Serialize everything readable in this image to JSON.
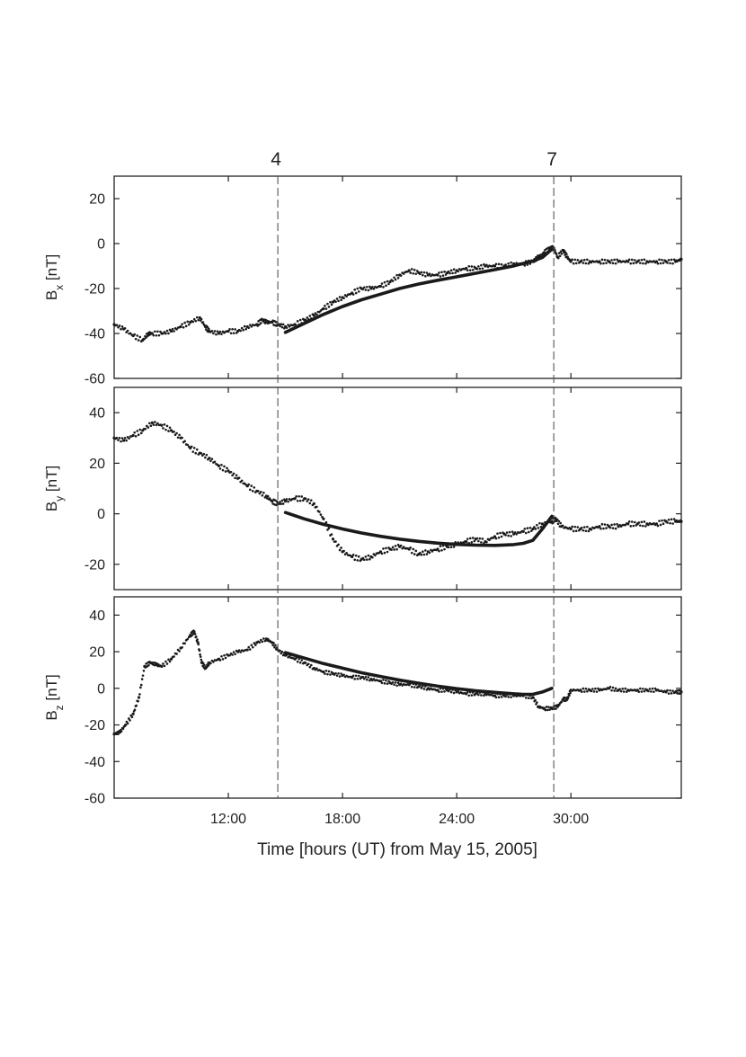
{
  "chart_data": {
    "type": "scatter",
    "xlabel": "Time [hours (UT) from May 15, 2005]",
    "x_ticks": [
      {
        "value": 12,
        "label": "12:00"
      },
      {
        "value": 18,
        "label": "18:00"
      },
      {
        "value": 24,
        "label": "24:00"
      },
      {
        "value": 30,
        "label": "30:00"
      }
    ],
    "xlim": [
      6,
      35.8
    ],
    "markers": [
      {
        "x": 14.6,
        "label": "4"
      },
      {
        "x": 29.1,
        "label": "7"
      }
    ],
    "colors": {
      "data": "#1a1a1a",
      "fit": "#1a1a1a",
      "marker_line": "#555555",
      "axis": "#222222"
    },
    "panels": [
      {
        "name": "Bx",
        "ylabel": "B",
        "ylabel_sub": "x",
        "ylabel_unit": " [nT]",
        "ylim": [
          -60,
          30
        ],
        "y_ticks": [
          20,
          0,
          -20,
          -40,
          -60
        ],
        "series": [
          {
            "kind": "points",
            "x": [
              6.0,
              6.5,
              7.0,
              7.5,
              7.8,
              8.0,
              8.5,
              9.0,
              9.5,
              10.0,
              10.5,
              10.8,
              11.0,
              11.5,
              12.0,
              12.5,
              13.0,
              13.5,
              13.8,
              14.0,
              14.3,
              14.6,
              15.0,
              15.5,
              16.0,
              16.5,
              17.0,
              17.5,
              18.0,
              18.5,
              19.0,
              19.5,
              20.0,
              20.5,
              21.0,
              21.5,
              22.0,
              22.5,
              23.0,
              23.5,
              24.0,
              24.5,
              25.0,
              25.5,
              26.0,
              26.5,
              27.0,
              27.5,
              28.0,
              28.3,
              28.6,
              28.9,
              29.1,
              29.3,
              29.6,
              29.8,
              30.0,
              30.5,
              31.0,
              31.5,
              32.0,
              32.5,
              33.0,
              33.5,
              34.0,
              34.5,
              35.0,
              35.5,
              35.8
            ],
            "y": [
              -36,
              -38,
              -41,
              -43,
              -40,
              -40,
              -40,
              -39,
              -37,
              -35,
              -33,
              -37,
              -39,
              -40,
              -39,
              -39,
              -37,
              -36,
              -34,
              -35,
              -35,
              -36,
              -37,
              -36,
              -34,
              -32,
              -29,
              -26,
              -24,
              -22,
              -20,
              -20,
              -19,
              -17,
              -14,
              -12,
              -13,
              -14,
              -14,
              -13,
              -12,
              -11,
              -11,
              -10,
              -10,
              -10,
              -9,
              -9,
              -8,
              -6,
              -4,
              -2,
              -2,
              -6,
              -3,
              -6,
              -8,
              -8,
              -8,
              -8,
              -8,
              -8,
              -8,
              -8,
              -8,
              -8,
              -8,
              -8,
              -7
            ]
          },
          {
            "kind": "fit",
            "x": [
              15.0,
              16.0,
              17.0,
              18.0,
              19.0,
              20.0,
              21.0,
              22.0,
              23.0,
              24.0,
              25.0,
              26.0,
              27.0,
              28.0,
              28.5,
              29.0
            ],
            "y": [
              -39.5,
              -35.5,
              -31.5,
              -28,
              -25,
              -22.5,
              -20,
              -18,
              -16.3,
              -14.8,
              -13.2,
              -11.6,
              -9.9,
              -7.8,
              -6.2,
              -2.5
            ]
          }
        ]
      },
      {
        "name": "By",
        "ylabel": "B",
        "ylabel_sub": "y",
        "ylabel_unit": " [nT]",
        "ylim": [
          -30,
          50
        ],
        "y_ticks": [
          40,
          20,
          0,
          -20
        ],
        "series": [
          {
            "kind": "points",
            "x": [
              6.0,
              6.5,
              7.0,
              7.5,
              8.0,
              8.5,
              9.0,
              9.5,
              10.0,
              10.5,
              11.0,
              11.5,
              12.0,
              12.5,
              13.0,
              13.5,
              14.0,
              14.3,
              14.6,
              15.0,
              15.5,
              16.0,
              16.5,
              17.0,
              17.5,
              18.0,
              18.5,
              19.0,
              19.5,
              20.0,
              20.5,
              21.0,
              21.5,
              22.0,
              22.5,
              23.0,
              23.5,
              24.0,
              24.5,
              25.0,
              25.5,
              26.0,
              26.5,
              27.0,
              27.5,
              28.0,
              28.5,
              29.0,
              29.2,
              29.5,
              30.0,
              30.5,
              31.0,
              31.5,
              32.0,
              32.5,
              33.0,
              33.5,
              34.0,
              34.5,
              35.0,
              35.5,
              35.8
            ],
            "y": [
              30,
              29,
              31,
              33,
              36,
              35,
              33,
              30,
              26,
              24,
              22,
              19,
              17,
              14,
              11,
              9,
              7,
              5,
              4,
              5,
              6,
              6,
              4,
              -2,
              -10,
              -15,
              -17,
              -18,
              -17,
              -15,
              -14,
              -13,
              -14,
              -16,
              -15,
              -14,
              -13,
              -12,
              -11,
              -10,
              -11,
              -9,
              -8,
              -8,
              -7,
              -6,
              -4,
              -3,
              -2,
              -5,
              -6,
              -6,
              -6,
              -5,
              -5,
              -5,
              -4,
              -4,
              -4,
              -4,
              -3,
              -3,
              -3
            ]
          },
          {
            "kind": "fit",
            "x": [
              15.0,
              16.0,
              17.0,
              18.0,
              19.0,
              20.0,
              21.0,
              22.0,
              23.0,
              24.0,
              25.0,
              26.0,
              27.0,
              27.5,
              28.0,
              28.5,
              29.0
            ],
            "y": [
              0.5,
              -2,
              -4.2,
              -6,
              -7.6,
              -8.9,
              -10,
              -10.9,
              -11.6,
              -12.1,
              -12.4,
              -12.5,
              -12.2,
              -11.7,
              -10.5,
              -6,
              -1
            ]
          }
        ]
      },
      {
        "name": "Bz",
        "ylabel": "B",
        "ylabel_sub": "z",
        "ylabel_unit": " [nT]",
        "ylim": [
          -60,
          50
        ],
        "y_ticks": [
          40,
          20,
          0,
          -20,
          -40,
          -60
        ],
        "series": [
          {
            "kind": "points",
            "x": [
              6.0,
              6.3,
              6.6,
              7.0,
              7.3,
              7.6,
              7.9,
              8.2,
              8.5,
              9.0,
              9.5,
              10.0,
              10.2,
              10.4,
              10.6,
              10.8,
              11.0,
              11.5,
              12.0,
              12.5,
              13.0,
              13.5,
              14.0,
              14.3,
              14.6,
              15.0,
              15.5,
              16.0,
              16.5,
              17.0,
              17.5,
              18.0,
              18.5,
              19.0,
              19.5,
              20.0,
              20.5,
              21.0,
              21.5,
              22.0,
              22.5,
              23.0,
              23.5,
              24.0,
              24.5,
              25.0,
              25.5,
              26.0,
              26.5,
              27.0,
              27.5,
              28.0,
              28.3,
              28.6,
              29.0,
              29.3,
              29.6,
              29.8,
              30.0,
              30.5,
              31.0,
              31.5,
              32.0,
              32.5,
              33.0,
              33.5,
              34.0,
              34.5,
              35.0,
              35.5,
              35.8
            ],
            "y": [
              -25,
              -24,
              -20,
              -14,
              -5,
              12,
              14,
              13,
              12,
              16,
              22,
              29,
              31,
              25,
              14,
              11,
              14,
              16,
              18,
              20,
              21,
              25,
              27,
              25,
              21,
              18,
              16,
              14,
              11,
              9,
              8,
              7,
              6,
              6,
              5,
              4,
              3,
              2,
              2,
              1,
              0,
              -1,
              -1,
              -2,
              -3,
              -3,
              -3,
              -4,
              -4,
              -4,
              -4,
              -5,
              -10,
              -11,
              -11,
              -10,
              -6,
              -6,
              -1,
              -1,
              -1,
              -1,
              0,
              -1,
              -1,
              -1,
              -1,
              -1,
              -2,
              -2,
              -2
            ]
          },
          {
            "kind": "fit",
            "x": [
              15.0,
              16.0,
              17.0,
              18.0,
              19.0,
              20.0,
              21.0,
              22.0,
              23.0,
              24.0,
              25.0,
              26.0,
              27.0,
              27.5,
              28.0,
              28.5,
              29.0
            ],
            "y": [
              19.5,
              16.5,
              13.5,
              11,
              8.5,
              6.5,
              4.5,
              2.8,
              1.2,
              -0.2,
              -1.3,
              -2.2,
              -3,
              -3.3,
              -3.3,
              -2,
              0
            ]
          }
        ]
      }
    ]
  }
}
